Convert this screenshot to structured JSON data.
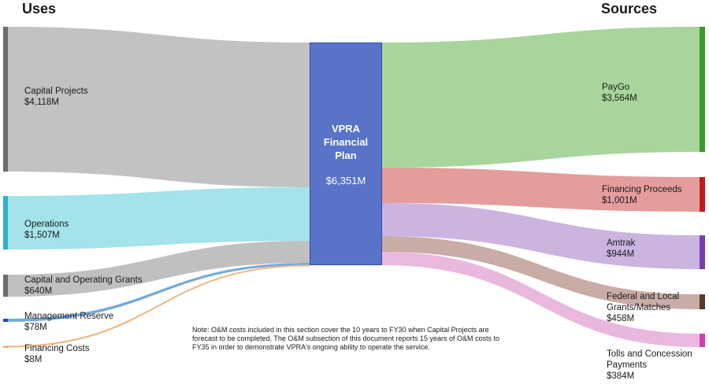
{
  "headers": {
    "uses": "Uses",
    "sources": "Sources"
  },
  "center": {
    "title_lines": [
      "VPRA",
      "Financial",
      "Plan"
    ],
    "value": "$6,351M"
  },
  "uses": [
    {
      "label": "Capital Projects",
      "value": "$4,118M",
      "amount": 4118,
      "color": "#c2c2c2",
      "bar": "#6b6b6b"
    },
    {
      "label": "Operations",
      "value": "$1,507M",
      "amount": 1507,
      "color": "#9fe1e9",
      "bar": "#2db4c4"
    },
    {
      "label": "Capital and Operating Grants",
      "value": "$640M",
      "amount": 640,
      "color": "#bdbdbd",
      "bar": "#6b6b6b"
    },
    {
      "label": "Management Reserve",
      "value": "$78M",
      "amount": 78,
      "color": "#6ea5d8",
      "bar": "#1f4fa0"
    },
    {
      "label": "Financing Costs",
      "value": "$8M",
      "amount": 8,
      "color": "#f3b37a",
      "bar": "#e8893a"
    }
  ],
  "sources": [
    {
      "label": "PayGo",
      "value": "$3,564M",
      "amount": 3564,
      "color": "#a8d59c",
      "bar": "#3a9a2a"
    },
    {
      "label": "Financing Proceeds",
      "value": "$1,001M",
      "amount": 1001,
      "color": "#e59c9c",
      "bar": "#c41a1a"
    },
    {
      "label": "Amtrak",
      "value": "$944M",
      "amount": 944,
      "color": "#cbb4e0",
      "bar": "#7a3eb3"
    },
    {
      "label": "Federal and Local Grants/Matches",
      "value": "$458M",
      "amount": 458,
      "color": "#c8aca5",
      "bar": "#5a3a2a"
    },
    {
      "label": "Tolls and Concession Payments",
      "value": "$384M",
      "amount": 384,
      "color": "#eab8dc",
      "bar": "#d03fb0"
    }
  ],
  "note": "Note: O&M costs included in this section cover the 10 years to FY30 when Capital Projects are forecast to be completed. The O&M subsection of this document reports 15 years of O&M costs to FY35 in order to demonstrate VPRA's ongoing ability to operate the service."
}
